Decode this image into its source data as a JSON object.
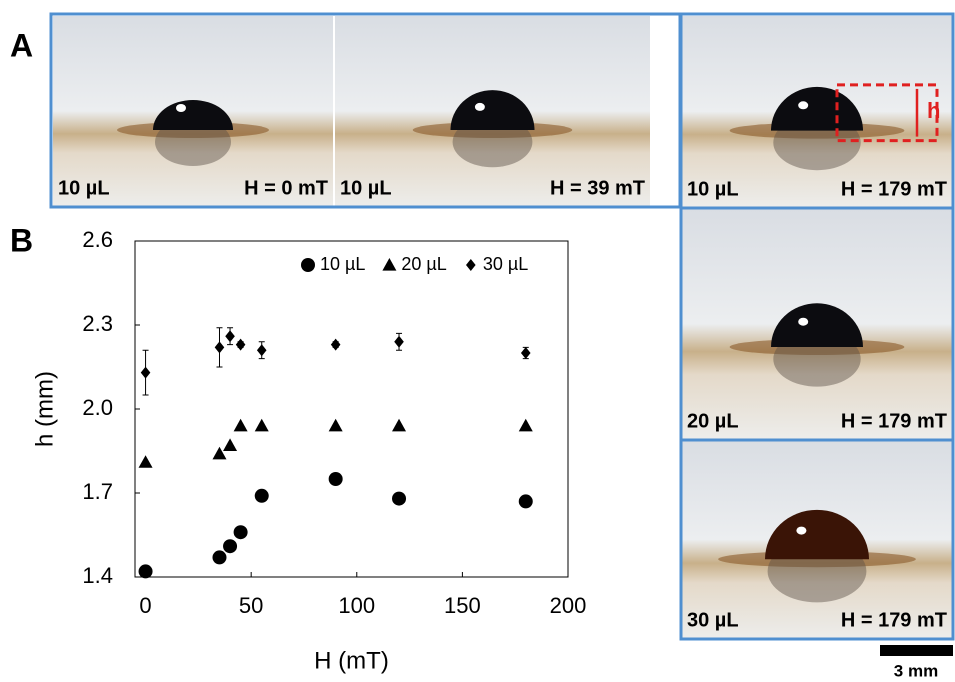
{
  "panel_labels": [
    "A",
    "B"
  ],
  "photos": [
    {
      "volume": "10 µL",
      "field": "H = 0 mT"
    },
    {
      "volume": "10 µL",
      "field": "H = 39 mT"
    },
    {
      "volume": "10 µL",
      "field": "H = 179 mT",
      "marker": "h"
    },
    {
      "volume": "20 µL",
      "field": "H = 179 mT"
    },
    {
      "volume": "30 µL",
      "field": "H = 179 mT"
    }
  ],
  "scale_bar": "3 mm",
  "chart_data": {
    "type": "scatter",
    "x_label": "H (mT)",
    "y_label": "h (mm)",
    "x": [
      0,
      35,
      40,
      45,
      55,
      90,
      120,
      180
    ],
    "series": [
      {
        "name": "10 µL",
        "marker": "circle",
        "color": "#000000",
        "values": [
          1.42,
          1.47,
          1.51,
          1.56,
          1.69,
          1.75,
          1.68,
          1.67
        ]
      },
      {
        "name": "20 µL",
        "marker": "triangle",
        "color": "#000000",
        "values": [
          1.81,
          1.84,
          1.87,
          1.94,
          1.94,
          1.94,
          1.94,
          1.94
        ]
      },
      {
        "name": "30 µL",
        "marker": "diamond",
        "color": "#000000",
        "values": [
          2.13,
          2.22,
          2.26,
          2.23,
          2.21,
          2.23,
          2.24,
          2.2
        ],
        "errors": [
          0.08,
          0.07,
          0.03,
          0.01,
          0.03,
          0.01,
          0.03,
          0.02
        ]
      }
    ],
    "xlim": [
      -5,
      200
    ],
    "xticks": [
      0,
      50,
      100,
      150,
      200
    ],
    "ylim": [
      1.4,
      2.6
    ],
    "yticks": [
      1.4,
      1.7,
      {
        "value": 2,
        "label": "2.0"
      },
      2.3,
      2.6
    ],
    "legend": "top-right"
  }
}
